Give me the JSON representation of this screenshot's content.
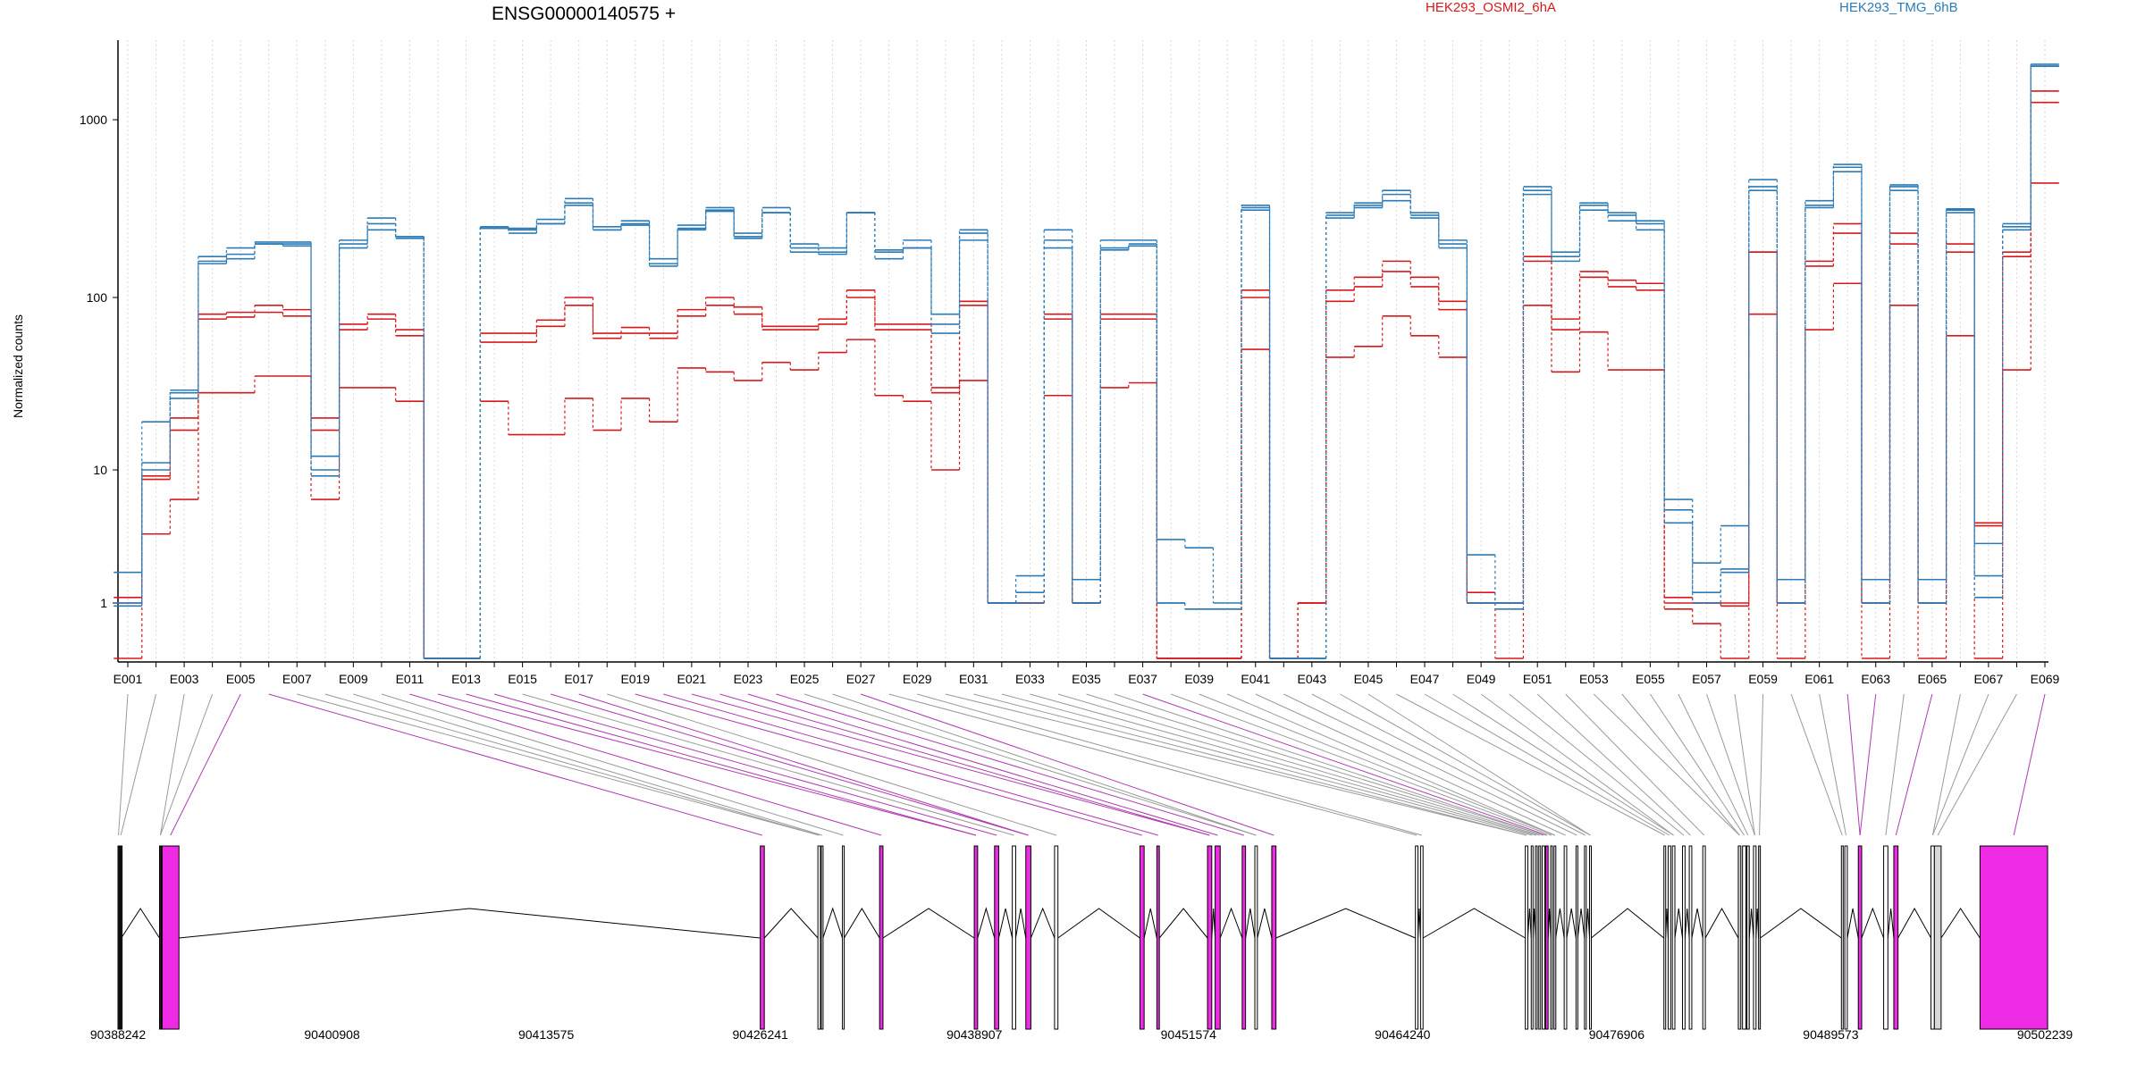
{
  "chart_data": {
    "type": "line",
    "title": "ENSG00000140575 +",
    "ylabel": "Normalized counts",
    "yscale": "log",
    "ylim": [
      0.5,
      2800
    ],
    "yticks": [
      "1",
      "10",
      "100",
      "1000"
    ],
    "grid": "vertical dotted lines at each exon",
    "legend_placement": "top",
    "colors": {
      "red": "#d7191c",
      "blue": "#2c7bb6",
      "exon_pink": "#ee2be4",
      "exon_gray": "#d8d8d8"
    },
    "exons": [
      "E001",
      "E002",
      "E003",
      "E004",
      "E005",
      "E006",
      "E007",
      "E008",
      "E009",
      "E010",
      "E011",
      "E012",
      "E013",
      "E014",
      "E015",
      "E016",
      "E017",
      "E018",
      "E019",
      "E020",
      "E021",
      "E022",
      "E023",
      "E024",
      "E025",
      "E026",
      "E027",
      "E028",
      "E029",
      "E030",
      "E031",
      "E032",
      "E033",
      "E034",
      "E035",
      "E036",
      "E037",
      "E038",
      "E039",
      "E040",
      "E041",
      "E042",
      "E043",
      "E044",
      "E045",
      "E046",
      "E047",
      "E048",
      "E049",
      "E050",
      "E051",
      "E052",
      "E053",
      "E054",
      "E055",
      "E056",
      "E057",
      "E058",
      "E059",
      "E060",
      "E061",
      "E062",
      "E063",
      "E064",
      "E065",
      "E066",
      "E067",
      "E068",
      "E069"
    ],
    "xtick_labels": [
      "E001",
      "E003",
      "E005",
      "E007",
      "E009",
      "E011",
      "E013",
      "E015",
      "E017",
      "E019",
      "E021",
      "E023",
      "E025",
      "E027",
      "E029",
      "E031",
      "E033",
      "E035",
      "E037",
      "E039",
      "E041",
      "E043",
      "E045",
      "E047",
      "E049",
      "E051",
      "E053",
      "E055",
      "E057",
      "E059",
      "E061",
      "E063",
      "E065",
      "E067",
      "E069"
    ],
    "series": [
      {
        "name": "HEK293_OSMI2_6hA",
        "color": "red",
        "values": [
          1.1,
          9,
          20,
          80,
          82,
          90,
          85,
          20,
          70,
          80,
          65,
          0,
          0,
          62,
          62,
          74,
          100,
          62,
          67,
          62,
          85,
          100,
          88,
          68,
          68,
          75,
          110,
          70,
          70,
          30,
          95,
          1,
          1,
          80,
          1,
          80,
          80,
          0,
          0,
          0,
          110,
          0,
          1,
          110,
          130,
          160,
          130,
          95,
          1.2,
          1,
          170,
          75,
          140,
          125,
          120,
          1.1,
          1,
          1,
          180,
          1,
          160,
          260,
          1,
          230,
          1,
          200,
          4,
          180,
          1450
        ]
      },
      {
        "name": "HEK293_OSMI2_6hA",
        "color": "red",
        "values": [
          1,
          8.5,
          17,
          75,
          77,
          82,
          78,
          17,
          65,
          75,
          60,
          0,
          0,
          55,
          55,
          68,
          90,
          58,
          62,
          58,
          78,
          90,
          80,
          65,
          65,
          70,
          100,
          65,
          65,
          28,
          90,
          1,
          1,
          75,
          1,
          75,
          75,
          0,
          0,
          0,
          100,
          0,
          1,
          95,
          115,
          140,
          115,
          85,
          1,
          1,
          160,
          65,
          130,
          115,
          110,
          1,
          1,
          0.95,
          180,
          1,
          150,
          230,
          1,
          200,
          1,
          180,
          3.8,
          170,
          1250
        ]
      },
      {
        "name": "HEK293_OSMI2_6hA",
        "color": "red",
        "values": [
          0.5,
          3.3,
          6,
          28,
          28,
          35,
          35,
          6,
          30,
          30,
          25,
          0,
          0,
          25,
          16,
          16,
          26,
          17,
          26,
          19,
          39,
          37,
          33,
          42,
          38,
          48,
          57,
          27,
          25,
          10,
          33,
          1,
          1,
          27,
          1,
          30,
          32,
          0,
          0,
          0,
          50,
          0,
          1,
          45,
          52,
          78,
          60,
          45,
          1,
          0.5,
          90,
          37,
          63,
          38,
          38,
          0.9,
          0.7,
          0.5,
          80,
          0.5,
          65,
          120,
          0.5,
          90,
          0.5,
          60,
          0.5,
          38,
          440
        ]
      },
      {
        "name": "HEK293_TMG_6hB",
        "color": "blue",
        "values": [
          1.7,
          11,
          28,
          170,
          175,
          200,
          200,
          12,
          210,
          280,
          220,
          0,
          0,
          250,
          245,
          275,
          360,
          250,
          270,
          155,
          255,
          310,
          230,
          320,
          200,
          190,
          300,
          185,
          210,
          80,
          240,
          1,
          1.6,
          240,
          1.5,
          210,
          210,
          3,
          2.6,
          1,
          330,
          0,
          0,
          300,
          340,
          400,
          300,
          210,
          2.3,
          1,
          400,
          180,
          340,
          300,
          270,
          6,
          2,
          3.8,
          460,
          1.5,
          350,
          560,
          1.5,
          430,
          1.5,
          315,
          2.8,
          260,
          2000
        ]
      },
      {
        "name": "HEK293_TMG_6hB",
        "color": "blue",
        "values": [
          1,
          10,
          29,
          160,
          165,
          200,
          195,
          10,
          200,
          260,
          215,
          0,
          0,
          245,
          240,
          260,
          340,
          240,
          260,
          165,
          245,
          320,
          220,
          300,
          190,
          180,
          300,
          180,
          190,
          70,
          230,
          1,
          1.2,
          210,
          1,
          190,
          200,
          1,
          0.9,
          0.9,
          320,
          0,
          0,
          290,
          330,
          380,
          290,
          200,
          1,
          1,
          420,
          170,
          330,
          290,
          260,
          5,
          1.2,
          1.8,
          420,
          1,
          330,
          540,
          1,
          420,
          1,
          310,
          1.6,
          250,
          2050
        ]
      },
      {
        "name": "HEK293_TMG_6hB",
        "color": "blue",
        "values": [
          0.95,
          19,
          26,
          155,
          190,
          205,
          205,
          9,
          190,
          240,
          220,
          0,
          0,
          245,
          230,
          260,
          330,
          240,
          255,
          150,
          240,
          305,
          215,
          300,
          180,
          175,
          300,
          165,
          190,
          62,
          210,
          1,
          1,
          190,
          1,
          185,
          195,
          1,
          0.9,
          0.9,
          310,
          0,
          0,
          280,
          320,
          350,
          280,
          190,
          1,
          0.9,
          380,
          160,
          310,
          270,
          240,
          4,
          1,
          1.7,
          400,
          1,
          320,
          510,
          1,
          400,
          1,
          300,
          1.1,
          240,
          2000
        ]
      }
    ],
    "genomic_ticks": [
      "90388242",
      "90400908",
      "90413575",
      "90426241",
      "90438907",
      "90451574",
      "90464240",
      "90476906",
      "90489573",
      "90502239"
    ],
    "exon_model": [
      {
        "s": 90388242,
        "e": 90388300,
        "c": "black"
      },
      {
        "s": 90388380,
        "e": 90388440,
        "c": "black"
      },
      {
        "s": 90390700,
        "e": 90390800,
        "c": "black"
      },
      {
        "s": 90390850,
        "e": 90391850,
        "c": "pink"
      },
      {
        "s": 90426241,
        "e": 90426480,
        "c": "pink"
      },
      {
        "s": 90429650,
        "e": 90429800,
        "c": "white"
      },
      {
        "s": 90429850,
        "e": 90429950,
        "c": "white"
      },
      {
        "s": 90431100,
        "e": 90431200,
        "c": "white"
      },
      {
        "s": 90433300,
        "e": 90433500,
        "c": "pink"
      },
      {
        "s": 90438900,
        "e": 90439100,
        "c": "pink"
      },
      {
        "s": 90440100,
        "e": 90440350,
        "c": "pink"
      },
      {
        "s": 90441150,
        "e": 90441350,
        "c": "white"
      },
      {
        "s": 90441950,
        "e": 90442250,
        "c": "pink"
      },
      {
        "s": 90443650,
        "e": 90443850,
        "c": "white"
      },
      {
        "s": 90448700,
        "e": 90448950,
        "c": "pink"
      },
      {
        "s": 90449700,
        "e": 90449850,
        "c": "pink"
      },
      {
        "s": 90452700,
        "e": 90452950,
        "c": "pink"
      },
      {
        "s": 90453150,
        "e": 90453450,
        "c": "pink"
      },
      {
        "s": 90454750,
        "e": 90454950,
        "c": "pink"
      },
      {
        "s": 90455500,
        "e": 90455650,
        "c": "white"
      },
      {
        "s": 90456500,
        "e": 90456750,
        "c": "pink"
      },
      {
        "s": 90465000,
        "e": 90465150,
        "c": "white"
      },
      {
        "s": 90465300,
        "e": 90465450,
        "c": "white"
      },
      {
        "s": 90471500,
        "e": 90471650,
        "c": "white"
      },
      {
        "s": 90471850,
        "e": 90471950,
        "c": "white"
      },
      {
        "s": 90472100,
        "e": 90472200,
        "c": "white"
      },
      {
        "s": 90472300,
        "e": 90472400,
        "c": "white"
      },
      {
        "s": 90472500,
        "e": 90472650,
        "c": "white"
      },
      {
        "s": 90472700,
        "e": 90472850,
        "c": "pink"
      },
      {
        "s": 90473000,
        "e": 90473100,
        "c": "white"
      },
      {
        "s": 90473200,
        "e": 90473300,
        "c": "white"
      },
      {
        "s": 90473800,
        "e": 90473950,
        "c": "white"
      },
      {
        "s": 90474500,
        "e": 90474600,
        "c": "white"
      },
      {
        "s": 90475000,
        "e": 90475100,
        "c": "white"
      },
      {
        "s": 90475300,
        "e": 90475400,
        "c": "white"
      },
      {
        "s": 90479700,
        "e": 90479800,
        "c": "white"
      },
      {
        "s": 90479950,
        "e": 90480100,
        "c": "white"
      },
      {
        "s": 90480200,
        "e": 90480350,
        "c": "white"
      },
      {
        "s": 90480800,
        "e": 90480950,
        "c": "white"
      },
      {
        "s": 90481200,
        "e": 90481350,
        "c": "white"
      },
      {
        "s": 90482000,
        "e": 90482150,
        "c": "white"
      },
      {
        "s": 90484100,
        "e": 90484250,
        "c": "gray"
      },
      {
        "s": 90484350,
        "e": 90484550,
        "c": "white"
      },
      {
        "s": 90484600,
        "e": 90484750,
        "c": "gray"
      },
      {
        "s": 90485000,
        "e": 90485150,
        "c": "white"
      },
      {
        "s": 90485300,
        "e": 90485400,
        "c": "gray"
      },
      {
        "s": 90490200,
        "e": 90490300,
        "c": "white"
      },
      {
        "s": 90490400,
        "e": 90490550,
        "c": "white"
      },
      {
        "s": 90491200,
        "e": 90491400,
        "c": "pink"
      },
      {
        "s": 90492700,
        "e": 90492950,
        "c": "white"
      },
      {
        "s": 90493300,
        "e": 90493550,
        "c": "pink"
      },
      {
        "s": 90495500,
        "e": 90495700,
        "c": "white"
      },
      {
        "s": 90495700,
        "e": 90496100,
        "c": "gray"
      },
      {
        "s": 90498400,
        "e": 90502400,
        "c": "pink"
      }
    ],
    "legend": [
      {
        "label": "HEK293_OSMI2_6hA",
        "color": "#d7191c"
      },
      {
        "label": "HEK293_TMG_6hB",
        "color": "#2c7bb6"
      }
    ]
  }
}
